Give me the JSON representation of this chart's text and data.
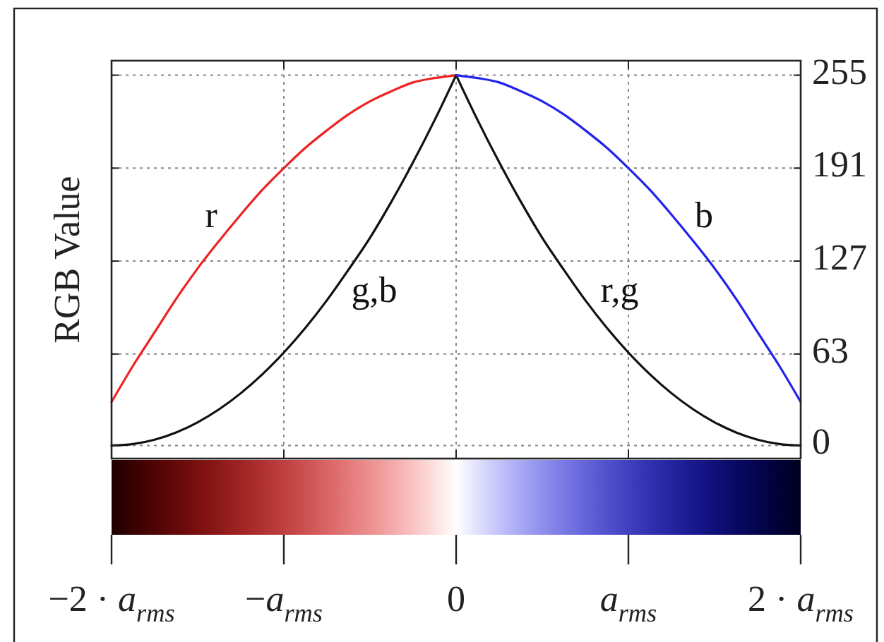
{
  "chart_data": {
    "type": "line",
    "ylabel": "RGB Value",
    "xlim": [
      -2,
      2
    ],
    "xticks": [
      {
        "value": -2,
        "label": "−2 · a$_{rms}$"
      },
      {
        "value": -1,
        "label": "−a$_{rms}$"
      },
      0,
      {
        "value": 1,
        "label": "a$_{rms}$"
      },
      {
        "value": 2,
        "label": "2 · a$_{rms}$"
      }
    ],
    "ylim": [
      -9,
      265
    ],
    "yticks": [
      0,
      63,
      127,
      191,
      255
    ],
    "grid": true,
    "series": [
      {
        "name": "r",
        "color": "#ee2222",
        "x": [
          -2,
          -1.875,
          -1.75,
          -1.625,
          -1.5,
          -1.375,
          -1.25,
          -1.125,
          -1,
          -0.875,
          -0.75,
          -0.625,
          -0.5,
          -0.375,
          -0.25,
          -0.125,
          0
        ],
        "values": [
          30,
          55,
          78,
          101,
          122,
          141,
          159,
          176,
          191,
          205,
          217,
          228,
          237,
          244,
          250,
          253,
          255
        ]
      },
      {
        "name": "g,b",
        "color": "#111111",
        "x": [
          -2,
          -1.875,
          -1.75,
          -1.625,
          -1.5,
          -1.375,
          -1.25,
          -1.125,
          -1,
          -0.875,
          -0.75,
          -0.625,
          -0.5,
          -0.375,
          -0.25,
          -0.125,
          0
        ],
        "values": [
          0,
          1,
          4,
          9,
          16,
          25,
          36,
          49,
          64,
          81,
          100,
          121,
          143,
          168,
          195,
          224,
          255
        ]
      },
      {
        "name": "r,g",
        "color": "#111111",
        "x": [
          0,
          0.125,
          0.25,
          0.375,
          0.5,
          0.625,
          0.75,
          0.875,
          1,
          1.125,
          1.25,
          1.375,
          1.5,
          1.625,
          1.75,
          1.875,
          2
        ],
        "values": [
          255,
          224,
          195,
          168,
          143,
          121,
          100,
          81,
          64,
          49,
          36,
          25,
          16,
          9,
          4,
          1,
          0
        ]
      },
      {
        "name": "b",
        "color": "#2222ee",
        "x": [
          0,
          0.125,
          0.25,
          0.375,
          0.5,
          0.625,
          0.75,
          0.875,
          1,
          1.125,
          1.25,
          1.375,
          1.5,
          1.625,
          1.75,
          1.875,
          2
        ],
        "values": [
          255,
          253,
          250,
          244,
          237,
          228,
          217,
          205,
          191,
          176,
          159,
          141,
          122,
          101,
          78,
          55,
          30
        ]
      }
    ]
  }
}
